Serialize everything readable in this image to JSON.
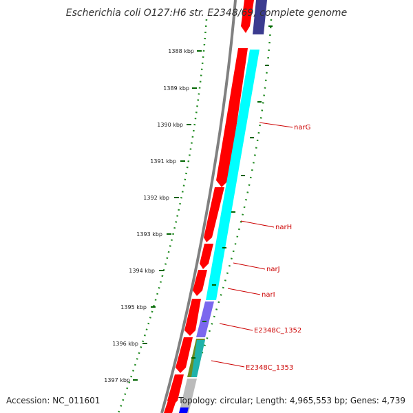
{
  "title": "Escherichia coli O127:H6 str. E2348/69, complete genome",
  "accession_label": "Accession: NC_011601",
  "summary_label": "Topology: circular; Length: 4,965,553 bp; Genes: 4,739",
  "colors": {
    "backbone": "#808080",
    "forward_cds": "#ff0000",
    "reverse_cds": "#00ffff",
    "other_feature": "#7b68ee",
    "gc_skew_positive": "#808000",
    "unknown_feature": "#bbbbbb",
    "tick": "#006400",
    "gene_label": "#cc0000"
  },
  "ticks": [
    {
      "label": "1388 kbp"
    },
    {
      "label": "1389 kbp"
    },
    {
      "label": "1390 kbp"
    },
    {
      "label": "1391 kbp"
    },
    {
      "label": "1392 kbp"
    },
    {
      "label": "1393 kbp"
    },
    {
      "label": "1394 kbp"
    },
    {
      "label": "1395 kbp"
    },
    {
      "label": "1396 kbp"
    },
    {
      "label": "1397 kbp"
    }
  ],
  "gene_labels": [
    {
      "text": "narG"
    },
    {
      "text": "narH"
    },
    {
      "text": "narJ"
    },
    {
      "text": "narI"
    },
    {
      "text": "E2348C_1352"
    },
    {
      "text": "E2348C_1353"
    }
  ]
}
